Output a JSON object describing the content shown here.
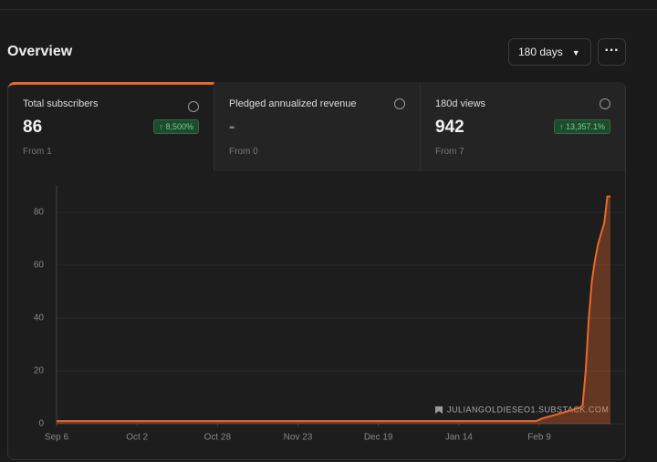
{
  "header": {
    "title": "Overview",
    "range": "180 days"
  },
  "cards": [
    {
      "label": "Total subscribers",
      "value": "86",
      "change": "8,500%",
      "from": "From 1"
    },
    {
      "label": "Pledged annualized revenue",
      "value": "-",
      "from": "From 0"
    },
    {
      "label": "180d views",
      "value": "942",
      "change": "13,357.1%",
      "from": "From 7"
    }
  ],
  "watermark": "JULIANGOLDIESEO1.SUBSTACK.COM",
  "chart_data": {
    "type": "area",
    "color": "#e8692c",
    "x": [
      0,
      155,
      157,
      160,
      163,
      166,
      169,
      170,
      171,
      172,
      173,
      174,
      175,
      176,
      177,
      178,
      179
    ],
    "values": [
      1,
      1,
      2,
      3,
      4,
      5,
      6,
      7,
      20,
      40,
      54,
      62,
      68,
      72,
      76,
      86,
      86
    ],
    "xlim": [
      0,
      179
    ],
    "xticks": [
      {
        "value": 0,
        "label": "Sep 6"
      },
      {
        "value": 26,
        "label": "Oct 2"
      },
      {
        "value": 52,
        "label": "Oct 28"
      },
      {
        "value": 78,
        "label": "Nov 23"
      },
      {
        "value": 104,
        "label": "Dec 19"
      },
      {
        "value": 130,
        "label": "Jan 14"
      },
      {
        "value": 156,
        "label": "Feb 9"
      }
    ],
    "ylim": [
      0,
      90
    ],
    "yticks": [
      0,
      20,
      40,
      60,
      80
    ],
    "grid": true
  }
}
